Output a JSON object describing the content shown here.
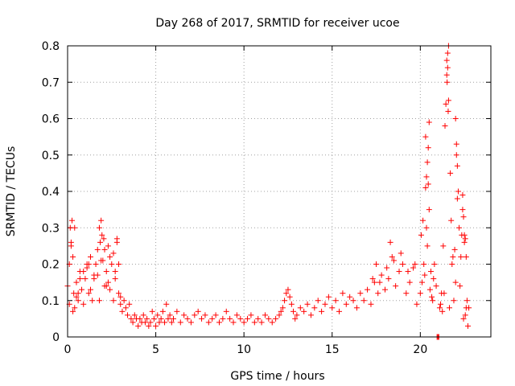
{
  "chart_data": {
    "type": "scatter",
    "title": "Day 268 of 2017, SRMTID for receiver ucoe",
    "xlabel": "GPS time / hours",
    "ylabel": "SRMTID / TECUs",
    "xlim": [
      0,
      24
    ],
    "ylim": [
      0,
      0.8
    ],
    "xticks": [
      0,
      5,
      10,
      15,
      20
    ],
    "xtick_labels": [
      "0",
      "5",
      "10",
      "15",
      "20"
    ],
    "yticks": [
      0,
      0.1,
      0.2,
      0.3,
      0.4,
      0.5,
      0.6,
      0.7,
      0.8
    ],
    "ytick_labels": [
      "0",
      "0.1",
      "0.2",
      "0.3",
      "0.4",
      "0.5",
      "0.6",
      "0.7",
      "0.8"
    ],
    "grid": true,
    "marker": "plus",
    "color": "#ff0000",
    "series": [
      {
        "name": "SRMTID",
        "x": [
          0.0,
          0.1,
          0.15,
          0.2,
          0.25,
          0.3,
          0.35,
          0.4,
          0.5,
          0.6,
          0.7,
          0.8,
          0.9,
          1.0,
          1.1,
          1.2,
          1.3,
          1.4,
          1.5,
          1.6,
          1.7,
          1.8,
          1.85,
          1.9,
          1.95,
          2.0,
          2.05,
          2.1,
          2.2,
          2.3,
          2.4,
          2.5,
          2.6,
          2.7,
          2.8,
          2.9,
          3.0,
          3.1,
          3.2,
          3.3,
          3.4,
          3.5,
          3.6,
          3.7,
          3.8,
          3.9,
          4.0,
          4.1,
          4.2,
          4.3,
          4.4,
          4.5,
          4.6,
          4.7,
          4.8,
          4.9,
          5.0,
          5.1,
          5.2,
          5.3,
          5.4,
          5.5,
          5.6,
          5.7,
          5.8,
          5.9,
          6.0,
          6.2,
          6.4,
          6.6,
          6.8,
          7.0,
          7.2,
          7.4,
          7.6,
          7.8,
          8.0,
          8.2,
          8.4,
          8.6,
          8.8,
          9.0,
          9.2,
          9.4,
          9.6,
          9.8,
          10.0,
          10.2,
          10.4,
          10.6,
          10.8,
          11.0,
          11.2,
          11.4,
          11.6,
          11.8,
          12.0,
          12.1,
          12.2,
          12.3,
          12.4,
          12.5,
          12.6,
          12.7,
          12.8,
          12.9,
          13.0,
          13.2,
          13.4,
          13.6,
          13.8,
          14.0,
          14.2,
          14.4,
          14.6,
          14.8,
          15.0,
          15.2,
          15.4,
          15.6,
          15.8,
          16.0,
          16.2,
          16.4,
          16.6,
          16.8,
          17.0,
          17.2,
          17.4,
          17.5,
          17.6,
          17.8,
          18.0,
          18.2,
          18.3,
          18.4,
          18.6,
          18.8,
          19.0,
          19.2,
          19.4,
          19.6,
          19.8,
          20.0,
          20.1,
          20.2,
          20.3,
          20.35,
          20.4,
          20.45,
          20.5,
          20.6,
          20.7,
          20.8,
          20.9,
          21.0,
          21.1,
          21.2,
          21.3,
          21.4,
          21.45,
          21.5,
          21.55,
          21.6,
          21.7,
          21.8,
          21.9,
          22.0,
          22.05,
          22.1,
          22.15,
          22.2,
          22.3,
          22.4,
          22.5,
          22.6,
          22.7,
          0.2,
          0.4,
          0.6,
          0.9,
          1.2,
          1.5,
          1.8,
          2.1,
          2.4,
          2.7,
          3.0,
          0.3,
          0.7,
          1.1,
          1.9,
          2.2,
          2.6,
          2.8,
          0.1,
          0.5,
          1.3,
          1.7,
          2.3,
          2.9,
          17.3,
          17.7,
          18.1,
          18.5,
          18.9,
          19.3,
          19.7,
          20.05,
          20.15,
          20.25,
          20.55,
          20.65,
          20.75,
          21.15,
          21.25,
          21.35,
          21.65,
          21.75,
          21.85,
          21.95,
          22.25,
          22.35,
          22.45,
          22.55,
          22.65,
          22.75,
          21.5,
          21.55,
          21.6,
          21.52,
          21.58,
          22.0,
          22.05,
          22.1,
          20.3,
          20.4,
          20.45,
          20.5,
          20.35,
          22.4,
          22.45,
          22.5,
          22.55,
          22.6,
          20.95,
          21.05,
          21.0
        ],
        "y": [
          0.14,
          0.2,
          0.3,
          0.26,
          0.32,
          0.22,
          0.12,
          0.08,
          0.15,
          0.1,
          0.18,
          0.13,
          0.09,
          0.16,
          0.2,
          0.12,
          0.22,
          0.1,
          0.17,
          0.2,
          0.24,
          0.3,
          0.26,
          0.32,
          0.28,
          0.21,
          0.27,
          0.24,
          0.18,
          0.15,
          0.13,
          0.2,
          0.1,
          0.16,
          0.27,
          0.12,
          0.09,
          0.07,
          0.1,
          0.08,
          0.06,
          0.09,
          0.05,
          0.04,
          0.06,
          0.05,
          0.03,
          0.05,
          0.04,
          0.06,
          0.04,
          0.05,
          0.03,
          0.04,
          0.07,
          0.05,
          0.03,
          0.06,
          0.04,
          0.05,
          0.07,
          0.04,
          0.09,
          0.05,
          0.06,
          0.04,
          0.05,
          0.07,
          0.04,
          0.06,
          0.05,
          0.04,
          0.06,
          0.07,
          0.05,
          0.06,
          0.04,
          0.05,
          0.06,
          0.04,
          0.05,
          0.07,
          0.05,
          0.04,
          0.06,
          0.05,
          0.04,
          0.05,
          0.06,
          0.04,
          0.05,
          0.04,
          0.06,
          0.05,
          0.04,
          0.05,
          0.06,
          0.07,
          0.08,
          0.1,
          0.12,
          0.13,
          0.11,
          0.09,
          0.07,
          0.05,
          0.06,
          0.08,
          0.07,
          0.09,
          0.06,
          0.08,
          0.1,
          0.07,
          0.09,
          0.11,
          0.08,
          0.1,
          0.07,
          0.12,
          0.09,
          0.11,
          0.1,
          0.08,
          0.12,
          0.1,
          0.13,
          0.09,
          0.15,
          0.2,
          0.12,
          0.17,
          0.13,
          0.16,
          0.26,
          0.22,
          0.14,
          0.18,
          0.2,
          0.12,
          0.15,
          0.19,
          0.09,
          0.12,
          0.15,
          0.2,
          0.41,
          0.3,
          0.25,
          0.52,
          0.59,
          0.18,
          0.1,
          0.2,
          0.14,
          0.0,
          0.08,
          0.12,
          0.25,
          0.58,
          0.64,
          0.72,
          0.78,
          0.65,
          0.45,
          0.2,
          0.1,
          0.15,
          0.5,
          0.38,
          0.4,
          0.3,
          0.22,
          0.35,
          0.28,
          0.08,
          0.03,
          0.25,
          0.3,
          0.12,
          0.18,
          0.2,
          0.16,
          0.1,
          0.14,
          0.22,
          0.18,
          0.11,
          0.07,
          0.16,
          0.19,
          0.21,
          0.14,
          0.23,
          0.26,
          0.09,
          0.11,
          0.13,
          0.17,
          0.25,
          0.2,
          0.16,
          0.15,
          0.19,
          0.21,
          0.23,
          0.18,
          0.2,
          0.28,
          0.32,
          0.17,
          0.13,
          0.11,
          0.16,
          0.09,
          0.07,
          0.12,
          0.08,
          0.32,
          0.22,
          0.24,
          0.14,
          0.28,
          0.05,
          0.06,
          0.1,
          0.08,
          0.76,
          0.74,
          0.8,
          0.7,
          0.62,
          0.6,
          0.53,
          0.47,
          0.55,
          0.48,
          0.42,
          0.35,
          0.44,
          0.39,
          0.33,
          0.26,
          0.27,
          0.22,
          0.0,
          0.0,
          0.0
        ]
      }
    ]
  }
}
